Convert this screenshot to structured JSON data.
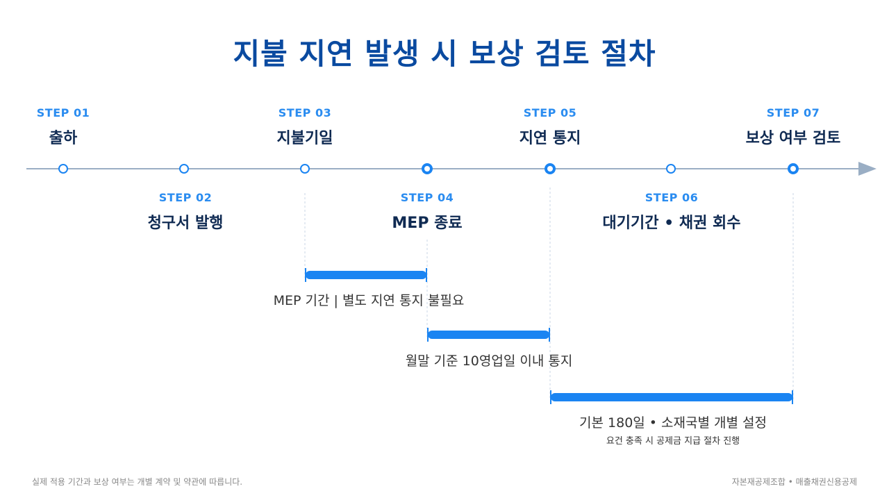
{
  "title": "지불 지연 발생 시 보상 검토 절차",
  "steps": [
    {
      "num": "STEP 01",
      "label": "출하"
    },
    {
      "num": "STEP 02",
      "label": "청구서 발행"
    },
    {
      "num": "STEP 03",
      "label": "지불기일"
    },
    {
      "num": "STEP 04",
      "label": "MEP 종료"
    },
    {
      "num": "STEP 05",
      "label": "지연 통지"
    },
    {
      "num": "STEP 06",
      "label": "대기기간 • 채권 회수"
    },
    {
      "num": "STEP 07",
      "label": "보상 여부 검토"
    }
  ],
  "periods": [
    {
      "label": "MEP 기간 | 별도 지연 통지 불필요"
    },
    {
      "label": "월말 기준 10영업일 이내 통지"
    },
    {
      "label": "기본 180일 • 소재국별 개별 설정",
      "sub": "요건 충족 시 공제금 지급 절차 진행"
    }
  ],
  "footer": {
    "note": "실제 적용 기간과 보상 여부는 개별 계약 및 약관에 따릅니다.",
    "org": "자본재공제조합 • 매출채권신용공제"
  },
  "colors": {
    "title": "#0a4aa0",
    "step_num": "#2a8cf0",
    "step_label": "#0f2a52",
    "axis": "#9aaec4",
    "bar": "#1a84f2",
    "node_open": "#1a84f2",
    "node_filled": "#1a84f2"
  }
}
